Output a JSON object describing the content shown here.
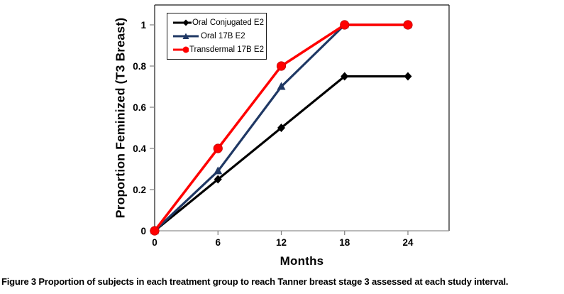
{
  "figure": {
    "caption_label": "Figure 3",
    "caption_text": " Proportion of subjects in each treatment group to reach Tanner breast stage 3 assessed at each study interval."
  },
  "chart_data": {
    "type": "line",
    "title": "",
    "xlabel": "Months",
    "ylabel": "Proportion Feminized (T3 Breast)",
    "x": [
      0,
      6,
      12,
      18,
      24
    ],
    "series": [
      {
        "name": "Oral Conjugated E2",
        "color": "#000000",
        "marker": "diamond",
        "line_width": 3.2,
        "values": [
          0,
          0.25,
          0.5,
          0.75,
          0.75
        ]
      },
      {
        "name": "Oral 17B E2",
        "color": "#1F3864",
        "marker": "triangle",
        "line_width": 3.2,
        "values": [
          0,
          0.29,
          0.7,
          1.0,
          1.0
        ]
      },
      {
        "name": "Transdermal 17B E2",
        "color": "#FF0000",
        "marker": "circle",
        "line_width": 3.5,
        "values": [
          0,
          0.4,
          0.8,
          1.0,
          1.0
        ]
      }
    ],
    "x_ticks": [
      0,
      6,
      12,
      18,
      24
    ],
    "x_tick_labels": [
      "0",
      "6",
      "12",
      "18",
      "24"
    ],
    "y_ticks": [
      0,
      0.2,
      0.4,
      0.6,
      0.8,
      1
    ],
    "y_tick_labels": [
      "0",
      "0.2",
      "0.4",
      "0.6",
      "0.8",
      "1"
    ],
    "xlim": [
      0,
      27.9
    ],
    "ylim": [
      0,
      1.1
    ],
    "grid": false,
    "legend_position": "top-left-inside",
    "colors": {
      "plot_border": "#1a1a1a",
      "bottom_axis": "#909090",
      "tick_mark": "#808080",
      "background": "#ffffff"
    }
  }
}
